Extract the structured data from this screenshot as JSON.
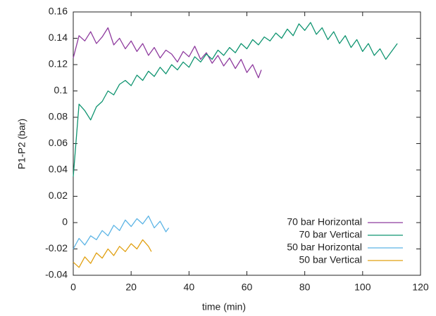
{
  "chart_data": {
    "type": "line",
    "x_label": "time (min)",
    "y_label": "P1-P2 (bar)",
    "xlim": [
      0,
      120
    ],
    "ylim": [
      -0.04,
      0.16
    ],
    "xticks": [
      0,
      20,
      40,
      60,
      80,
      100,
      120
    ],
    "yticks": [
      -0.04,
      -0.02,
      0,
      0.02,
      0.04,
      0.06,
      0.08,
      0.1,
      0.12,
      0.14,
      0.16
    ],
    "legend_position": "bottom-right",
    "series": [
      {
        "name": "70 bar Horizontal",
        "color": "#8e3a9e",
        "x": [
          0,
          2,
          4,
          6,
          8,
          10,
          12,
          14,
          16,
          18,
          20,
          22,
          24,
          26,
          28,
          30,
          32,
          34,
          36,
          38,
          40,
          42,
          44,
          46,
          48,
          50,
          52,
          54,
          56,
          58,
          60,
          62,
          64,
          65
        ],
        "values": [
          0.125,
          0.142,
          0.138,
          0.145,
          0.136,
          0.141,
          0.148,
          0.135,
          0.14,
          0.132,
          0.138,
          0.13,
          0.136,
          0.127,
          0.133,
          0.125,
          0.131,
          0.128,
          0.122,
          0.13,
          0.126,
          0.134,
          0.124,
          0.129,
          0.121,
          0.127,
          0.119,
          0.125,
          0.117,
          0.124,
          0.114,
          0.12,
          0.11,
          0.116
        ]
      },
      {
        "name": "70 bar Vertical",
        "color": "#0f9470",
        "x": [
          0,
          2,
          4,
          6,
          8,
          10,
          12,
          14,
          16,
          18,
          20,
          22,
          24,
          26,
          28,
          30,
          32,
          34,
          36,
          38,
          40,
          42,
          44,
          46,
          48,
          50,
          52,
          54,
          56,
          58,
          60,
          62,
          64,
          66,
          68,
          70,
          72,
          74,
          76,
          78,
          80,
          82,
          84,
          86,
          88,
          90,
          92,
          94,
          96,
          98,
          100,
          102,
          104,
          106,
          108,
          110,
          112
        ],
        "values": [
          0.035,
          0.09,
          0.085,
          0.078,
          0.088,
          0.092,
          0.1,
          0.097,
          0.105,
          0.108,
          0.104,
          0.112,
          0.108,
          0.115,
          0.111,
          0.118,
          0.113,
          0.12,
          0.116,
          0.122,
          0.118,
          0.126,
          0.122,
          0.128,
          0.124,
          0.131,
          0.127,
          0.133,
          0.129,
          0.136,
          0.132,
          0.139,
          0.135,
          0.141,
          0.138,
          0.144,
          0.14,
          0.147,
          0.142,
          0.151,
          0.146,
          0.152,
          0.143,
          0.148,
          0.139,
          0.145,
          0.136,
          0.142,
          0.133,
          0.139,
          0.13,
          0.136,
          0.127,
          0.132,
          0.124,
          0.13,
          0.136
        ]
      },
      {
        "name": "50 bar Horizontal",
        "color": "#5bb4e5",
        "x": [
          0,
          2,
          4,
          6,
          8,
          10,
          12,
          14,
          16,
          18,
          20,
          22,
          24,
          26,
          28,
          30,
          32,
          33
        ],
        "values": [
          -0.02,
          -0.012,
          -0.017,
          -0.01,
          -0.013,
          -0.006,
          -0.01,
          -0.002,
          -0.006,
          0.002,
          -0.003,
          0.003,
          -0.001,
          0.005,
          -0.004,
          0.001,
          -0.007,
          -0.004
        ]
      },
      {
        "name": "50 bar Vertical",
        "color": "#e1a011",
        "x": [
          0,
          2,
          4,
          6,
          8,
          10,
          12,
          14,
          16,
          18,
          20,
          22,
          24,
          26,
          27
        ],
        "values": [
          -0.03,
          -0.034,
          -0.026,
          -0.031,
          -0.023,
          -0.027,
          -0.02,
          -0.025,
          -0.018,
          -0.022,
          -0.016,
          -0.02,
          -0.013,
          -0.018,
          -0.022
        ]
      }
    ]
  }
}
